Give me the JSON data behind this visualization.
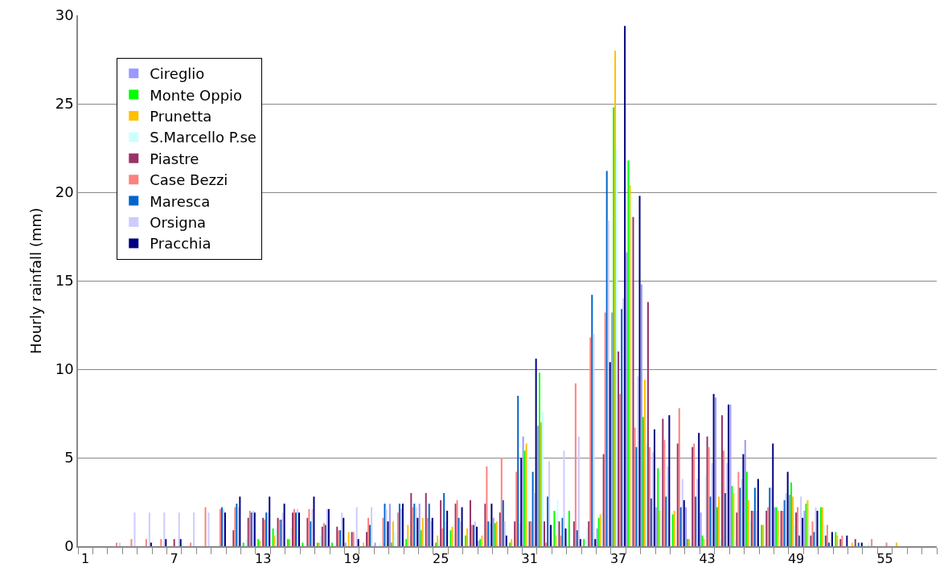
{
  "chart_data": {
    "type": "bar",
    "ylabel": "Hourly rainfall (mm)",
    "categories": [
      "1",
      null,
      null,
      null,
      null,
      null,
      "7",
      null,
      null,
      null,
      null,
      null,
      "13",
      null,
      null,
      null,
      null,
      null,
      "19",
      null,
      null,
      null,
      null,
      null,
      "25",
      null,
      null,
      null,
      null,
      null,
      "31",
      null,
      null,
      null,
      null,
      null,
      "37",
      null,
      null,
      null,
      null,
      null,
      "43",
      null,
      null,
      null,
      null,
      null,
      "49",
      null,
      null,
      null,
      null,
      null,
      "55",
      null,
      null,
      null
    ],
    "ylim": [
      0,
      30
    ],
    "yticks": [
      0,
      5,
      10,
      15,
      20,
      25,
      30
    ],
    "grid": "y",
    "legend": "top left",
    "series": [
      {
        "name": "Cireglio",
        "color": "#9999ff",
        "values": [
          0,
          0,
          0,
          0,
          0,
          0,
          0,
          0,
          0,
          0,
          0,
          0,
          0,
          0,
          0,
          0,
          0,
          0,
          0.2,
          0,
          0.2,
          2.4,
          0,
          2.4,
          0,
          0,
          0,
          0.3,
          1.6,
          0,
          6.2,
          6.8,
          0,
          0,
          0,
          1.0,
          13.2,
          16.6,
          14.8,
          2.2,
          0,
          2.2,
          1.9,
          8.4,
          8.0,
          6.0,
          0,
          2.2,
          2.9,
          2.0,
          0,
          0,
          0,
          0,
          0,
          0,
          0,
          0
        ]
      },
      {
        "name": "Monte Oppio",
        "color": "#00ff00",
        "values": [
          0,
          0,
          0,
          0,
          0,
          0,
          0,
          0,
          0,
          0,
          0,
          0.2,
          0.4,
          1.0,
          0.4,
          0.2,
          0.2,
          0.2,
          0,
          0,
          0,
          0.2,
          0.4,
          0.9,
          0.2,
          0.9,
          0.6,
          0.4,
          1.3,
          0.2,
          5.4,
          9.8,
          2.0,
          2.0,
          0.4,
          1.6,
          24.8,
          21.8,
          7.3,
          4.4,
          1.8,
          0.4,
          0.6,
          2.2,
          3.4,
          4.2,
          1.2,
          2.2,
          3.6,
          2.4,
          2.2,
          0.8,
          0,
          0,
          0,
          0,
          0,
          0
        ]
      },
      {
        "name": "Prunetta",
        "color": "#ffc000",
        "values": [
          0,
          0,
          0,
          0,
          0,
          0,
          0,
          0,
          0,
          0,
          0,
          0,
          0.3,
          0.6,
          0.4,
          0,
          0.2,
          0,
          0.8,
          0.2,
          0,
          1.4,
          1.2,
          1.6,
          0.6,
          1.1,
          1.0,
          0.6,
          1.4,
          0.4,
          5.8,
          7.0,
          0.6,
          0,
          0,
          1.8,
          28.0,
          20.4,
          9.4,
          2.0,
          2.0,
          0.4,
          0.4,
          2.8,
          3.0,
          2.6,
          1.2,
          2.0,
          2.8,
          2.6,
          2.2,
          0.6,
          0.2,
          0,
          0,
          0.2,
          0,
          0
        ]
      },
      {
        "name": "S.Marcello P.se",
        "color": "#ccffff",
        "values": [
          0,
          0,
          0,
          0,
          0,
          0,
          0,
          0,
          0,
          0,
          0,
          0.4,
          0,
          1.0,
          1.0,
          0,
          0.6,
          0.2,
          0,
          0,
          0.2,
          0.8,
          0.6,
          0,
          0.4,
          0,
          0,
          0,
          0,
          0,
          5.0,
          7.6,
          2.6,
          0,
          1.0,
          1.9,
          22.4,
          19.8,
          5.8,
          1.8,
          0,
          0,
          4.0,
          0.4,
          0.4,
          1.4,
          0,
          0.4,
          1.2,
          1.2,
          1.2,
          0,
          0,
          0.2,
          0,
          0,
          0,
          0
        ]
      },
      {
        "name": "Piastre",
        "color": "#993366",
        "values": [
          0,
          0,
          0,
          0,
          0,
          0,
          0.4,
          0,
          0,
          0,
          0.9,
          1.6,
          1.6,
          1.6,
          1.9,
          1.6,
          1.1,
          1.1,
          0.8,
          0.8,
          0,
          0,
          3.0,
          3.0,
          2.6,
          2.4,
          2.6,
          2.4,
          1.9,
          1.4,
          1.4,
          1.4,
          1.4,
          1.4,
          1.4,
          5.2,
          11.0,
          18.6,
          13.8,
          7.2,
          5.8,
          5.6,
          6.2,
          7.4,
          1.9,
          2.0,
          2.0,
          2.0,
          1.9,
          0.6,
          0.6,
          0.4,
          0.4,
          0,
          0,
          0,
          0,
          0
        ]
      },
      {
        "name": "Case Bezzi",
        "color": "#ff8080",
        "values": [
          0,
          0,
          0.2,
          0.4,
          0.4,
          0.4,
          0,
          0.2,
          2.2,
          2.1,
          2.2,
          2.0,
          1.5,
          1.5,
          2.1,
          2.1,
          1.3,
          0.9,
          0.8,
          1.6,
          1.6,
          1.9,
          2.2,
          1.6,
          1.0,
          2.6,
          1.2,
          4.5,
          5.0,
          4.2,
          1.4,
          0.2,
          0.6,
          9.2,
          11.8,
          13.2,
          8.6,
          6.7,
          5.6,
          6.0,
          7.8,
          5.8,
          5.6,
          5.4,
          4.2,
          2.0,
          2.2,
          2.0,
          2.2,
          1.4,
          1.2,
          0.6,
          0,
          0.4,
          0.2,
          0,
          0,
          0
        ]
      },
      {
        "name": "Maresca",
        "color": "#0066cc",
        "values": [
          0,
          0,
          0,
          0,
          0,
          0,
          0,
          0,
          0,
          2.2,
          2.4,
          1.9,
          1.9,
          1.5,
          1.9,
          1.4,
          1.2,
          0.9,
          0,
          1.2,
          2.4,
          2.4,
          2.4,
          2.4,
          3.0,
          1.6,
          1.2,
          1.4,
          2.6,
          8.5,
          4.2,
          2.8,
          1.6,
          0.9,
          14.2,
          21.2,
          13.4,
          5.6,
          2.7,
          2.8,
          2.2,
          2.8,
          2.8,
          3.0,
          3.3,
          3.3,
          3.3,
          2.6,
          0.6,
          0.8,
          0.2,
          0,
          0.2,
          0,
          0,
          0,
          0,
          0
        ]
      },
      {
        "name": "Orsigna",
        "color": "#ccccff",
        "values": [
          0,
          0,
          0.2,
          1.9,
          1.9,
          1.9,
          1.9,
          1.9,
          1.9,
          2.1,
          2.2,
          2.0,
          1.9,
          1.9,
          2.1,
          2.1,
          2.1,
          1.9,
          2.2,
          2.2,
          2.1,
          2.1,
          2.2,
          1.4,
          1.4,
          1.4,
          1.4,
          1.3,
          1.4,
          1.3,
          3.0,
          4.8,
          5.4,
          6.2,
          12.0,
          18.4,
          14.0,
          9.6,
          5.3,
          4.5,
          3.8,
          3.8,
          4.7,
          4.7,
          3.8,
          2.0,
          3.3,
          3.0,
          2.8,
          2.2,
          0,
          0,
          0,
          0,
          0,
          0,
          0,
          0
        ]
      },
      {
        "name": "Pracchia",
        "color": "#000080",
        "values": [
          0,
          0,
          0,
          0,
          0.2,
          0.4,
          0.4,
          0,
          0,
          1.9,
          2.8,
          1.9,
          2.8,
          2.4,
          1.9,
          2.8,
          2.1,
          1.6,
          0.4,
          0,
          1.4,
          2.4,
          1.6,
          1.6,
          2.0,
          2.2,
          1.1,
          2.4,
          0.6,
          5.0,
          10.6,
          1.2,
          1.0,
          0.4,
          0.4,
          10.4,
          29.4,
          19.8,
          6.6,
          7.4,
          2.6,
          6.4,
          8.6,
          8.0,
          5.2,
          3.8,
          5.8,
          4.2,
          1.6,
          2.0,
          0.8,
          0.6,
          0.2,
          0,
          0,
          0,
          0,
          0
        ]
      }
    ]
  }
}
